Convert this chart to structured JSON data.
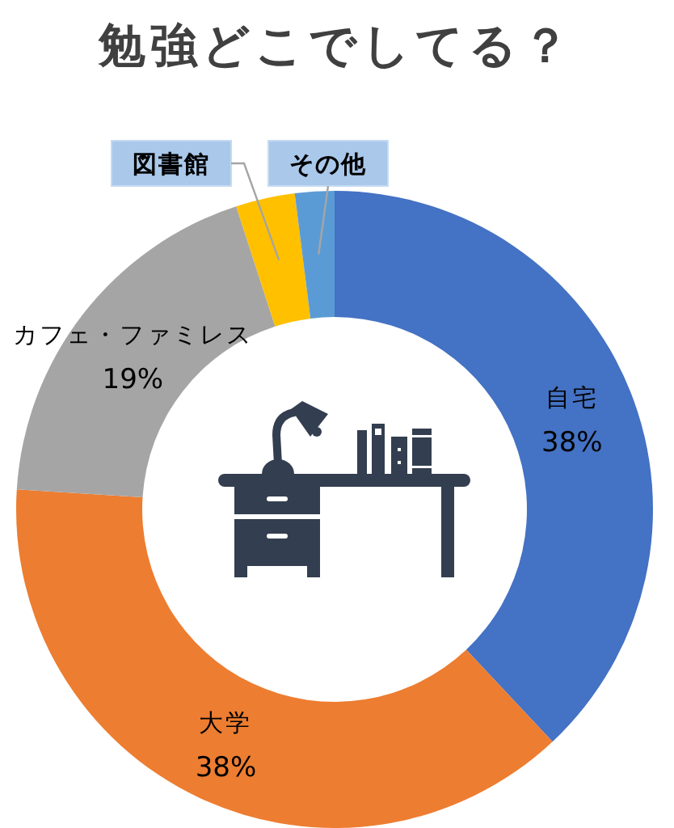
{
  "chart_data": {
    "type": "donut",
    "title": "勉強どこでしてる？",
    "categories": [
      "自宅",
      "大学",
      "カフェ・ファミレス",
      "図書館",
      "その他"
    ],
    "values": [
      38,
      38,
      19,
      3,
      2
    ],
    "colors": [
      "#4472c4",
      "#ed7d31",
      "#a5a5a5",
      "#ffc000",
      "#5b9bd5"
    ],
    "value_labels": [
      "38%",
      "38%",
      "19%",
      null,
      null
    ]
  }
}
